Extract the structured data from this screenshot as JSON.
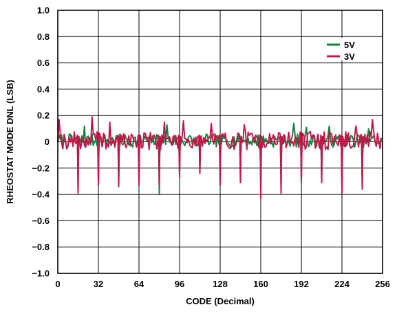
{
  "chart_data": {
    "type": "line",
    "xlabel": "CODE (Decimal)",
    "ylabel": "RHEOSTAT MODE DNL (LSB)",
    "xlim": [
      0,
      256
    ],
    "ylim": [
      -1.0,
      1.0
    ],
    "grid": true,
    "legend_position": "top-right",
    "x_ticks": [
      0,
      32,
      64,
      96,
      128,
      160,
      192,
      224,
      256
    ],
    "x_tick_labels": [
      "0",
      "32",
      "64",
      "96",
      "128",
      "160",
      "192",
      "224",
      "256"
    ],
    "y_ticks": [
      1.0,
      0.8,
      0.6,
      0.4,
      0.2,
      0,
      -0.2,
      -0.4,
      -0.6,
      -0.8,
      -1.0
    ],
    "y_tick_labels": [
      "1.0",
      "0.8",
      "0.6",
      "0.4",
      "0.2",
      "0",
      "−0.2",
      "−0.4",
      "−0.6",
      "−0.8",
      "−1.0"
    ],
    "series": [
      {
        "name": "5V",
        "color": "#15803d",
        "noise_amplitude": 0.05,
        "seed": 7,
        "spikes": [
          {
            "x": 16,
            "y": -0.36
          },
          {
            "x": 32,
            "y": -0.31
          },
          {
            "x": 48,
            "y": -0.34
          },
          {
            "x": 64,
            "y": -0.32
          },
          {
            "x": 80,
            "y": -0.4
          },
          {
            "x": 96,
            "y": -0.26
          },
          {
            "x": 112,
            "y": -0.23
          },
          {
            "x": 128,
            "y": -0.3
          },
          {
            "x": 144,
            "y": -0.31
          },
          {
            "x": 160,
            "y": -0.36
          },
          {
            "x": 176,
            "y": -0.35
          },
          {
            "x": 192,
            "y": -0.3
          },
          {
            "x": 208,
            "y": -0.3
          },
          {
            "x": 224,
            "y": -0.35
          },
          {
            "x": 240,
            "y": -0.36
          }
        ],
        "peaks": [
          {
            "x": 21,
            "y": 0.12
          },
          {
            "x": 86,
            "y": 0.13
          },
          {
            "x": 186,
            "y": 0.14
          },
          {
            "x": 196,
            "y": 0.11
          },
          {
            "x": 214,
            "y": 0.12
          },
          {
            "x": 245,
            "y": 0.1
          }
        ]
      },
      {
        "name": "3V",
        "color": "#c0184a",
        "noise_amplitude": 0.07,
        "seed": 19,
        "spikes": [
          {
            "x": 16,
            "y": -0.39
          },
          {
            "x": 32,
            "y": -0.33
          },
          {
            "x": 48,
            "y": -0.34
          },
          {
            "x": 64,
            "y": -0.33
          },
          {
            "x": 80,
            "y": -0.33
          },
          {
            "x": 96,
            "y": -0.27
          },
          {
            "x": 112,
            "y": -0.24
          },
          {
            "x": 128,
            "y": -0.33
          },
          {
            "x": 144,
            "y": -0.31
          },
          {
            "x": 160,
            "y": -0.43
          },
          {
            "x": 176,
            "y": -0.39
          },
          {
            "x": 192,
            "y": -0.31
          },
          {
            "x": 208,
            "y": -0.31
          },
          {
            "x": 224,
            "y": -0.39
          },
          {
            "x": 240,
            "y": -0.36
          }
        ],
        "peaks": [
          {
            "x": 1,
            "y": 0.17
          },
          {
            "x": 27,
            "y": 0.19
          },
          {
            "x": 41,
            "y": 0.15
          },
          {
            "x": 84,
            "y": 0.15
          },
          {
            "x": 99,
            "y": 0.16
          },
          {
            "x": 121,
            "y": 0.14
          },
          {
            "x": 147,
            "y": 0.13
          },
          {
            "x": 176,
            "y": 0.12
          },
          {
            "x": 235,
            "y": 0.12
          },
          {
            "x": 248,
            "y": 0.17
          }
        ]
      }
    ]
  }
}
